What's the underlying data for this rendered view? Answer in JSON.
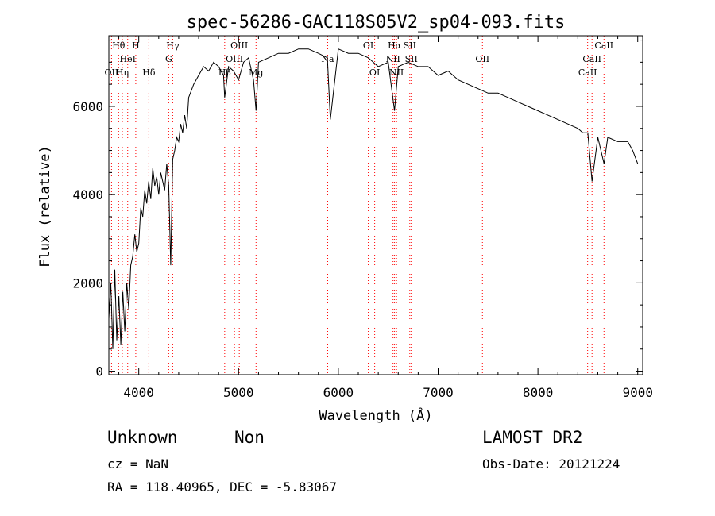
{
  "chart_data": {
    "type": "line",
    "title": "spec-56286-GAC118S05V2_sp04-093.fits",
    "xlabel": "Wavelength (Å)",
    "ylabel": "Flux (relative)",
    "xlim": [
      3700,
      9050
    ],
    "ylim": [
      -80,
      7600
    ],
    "x_ticks": [
      4000,
      5000,
      6000,
      7000,
      8000,
      9000
    ],
    "x_tick_labels": [
      "4000",
      "5000",
      "6000",
      "7000",
      "8000",
      "9000"
    ],
    "y_ticks": [
      0,
      2000,
      4000,
      6000
    ],
    "y_tick_labels": [
      "0",
      "2000",
      "4000",
      "6000"
    ],
    "grid": false,
    "series": [
      {
        "line_color": "#000000",
        "x": [
          3700,
          3720,
          3740,
          3760,
          3780,
          3800,
          3820,
          3840,
          3860,
          3880,
          3900,
          3920,
          3940,
          3960,
          3980,
          4000,
          4020,
          4040,
          4060,
          4080,
          4100,
          4120,
          4140,
          4160,
          4180,
          4200,
          4220,
          4240,
          4260,
          4280,
          4300,
          4320,
          4340,
          4360,
          4380,
          4400,
          4420,
          4440,
          4460,
          4480,
          4500,
          4550,
          4600,
          4650,
          4700,
          4750,
          4800,
          4850,
          4861,
          4900,
          4950,
          5000,
          5050,
          5100,
          5150,
          5175,
          5200,
          5300,
          5400,
          5500,
          5600,
          5700,
          5800,
          5890,
          5920,
          6000,
          6100,
          6200,
          6300,
          6400,
          6500,
          6563,
          6600,
          6700,
          6800,
          6900,
          7000,
          7100,
          7200,
          7300,
          7400,
          7500,
          7600,
          7700,
          7800,
          7900,
          8000,
          8100,
          8200,
          8300,
          8400,
          8450,
          8500,
          8542,
          8600,
          8662,
          8700,
          8800,
          8900,
          8950,
          9000
        ],
        "y": [
          1200,
          2000,
          500,
          2300,
          700,
          1700,
          600,
          1800,
          900,
          2000,
          1400,
          2400,
          2600,
          3100,
          2700,
          2900,
          3700,
          3500,
          4100,
          3800,
          4300,
          3900,
          4600,
          4200,
          4400,
          4000,
          4500,
          4300,
          4100,
          4700,
          4200,
          2400,
          4800,
          5000,
          5300,
          5200,
          5600,
          5400,
          5800,
          5500,
          6200,
          6500,
          6700,
          6900,
          6800,
          7000,
          6900,
          6700,
          6200,
          6900,
          6800,
          6600,
          7000,
          7100,
          6600,
          5900,
          7000,
          7100,
          7200,
          7200,
          7300,
          7300,
          7200,
          7100,
          5700,
          7300,
          7200,
          7200,
          7100,
          6900,
          7000,
          5900,
          6900,
          7000,
          6900,
          6900,
          6700,
          6800,
          6600,
          6500,
          6400,
          6300,
          6300,
          6200,
          6100,
          6000,
          5900,
          5800,
          5700,
          5600,
          5500,
          5400,
          5400,
          4300,
          5300,
          4700,
          5300,
          5200,
          5200,
          5000,
          4700
        ]
      }
    ],
    "line_markers": {
      "color": "#ff0000",
      "wavelengths": [
        3727,
        3798,
        3835,
        3889,
        3970,
        4101,
        4300,
        4340,
        4861,
        4959,
        5007,
        5175,
        5893,
        6300,
        6364,
        6548,
        6563,
        6583,
        6716,
        6731,
        7444,
        8498,
        8542,
        8662
      ],
      "labels": [
        {
          "text": "OII",
          "w": 3727,
          "row": 3
        },
        {
          "text": "Hθ",
          "w": 3798,
          "row": 1
        },
        {
          "text": "Hη",
          "w": 3835,
          "row": 3
        },
        {
          "text": "HeI",
          "w": 3889,
          "row": 2
        },
        {
          "text": "H",
          "w": 3970,
          "row": 1
        },
        {
          "text": "Hδ",
          "w": 4101,
          "row": 3
        },
        {
          "text": "Hγ",
          "w": 4340,
          "row": 1
        },
        {
          "text": "G",
          "w": 4300,
          "row": 2
        },
        {
          "text": "Hβ",
          "w": 4861,
          "row": 3
        },
        {
          "text": "OIII",
          "w": 4959,
          "row": 2
        },
        {
          "text": "OIII",
          "w": 5007,
          "row": 1
        },
        {
          "text": "Mg",
          "w": 5175,
          "row": 3
        },
        {
          "text": "Na",
          "w": 5893,
          "row": 2
        },
        {
          "text": "OI",
          "w": 6300,
          "row": 1
        },
        {
          "text": "OI",
          "w": 6364,
          "row": 3
        },
        {
          "text": "Hα",
          "w": 6563,
          "row": 1
        },
        {
          "text": "NII",
          "w": 6548,
          "row": 2
        },
        {
          "text": "NII",
          "w": 6583,
          "row": 3
        },
        {
          "text": "SII",
          "w": 6716,
          "row": 1
        },
        {
          "text": "SII",
          "w": 6731,
          "row": 2
        },
        {
          "text": "OII",
          "w": 7444,
          "row": 2
        },
        {
          "text": "CaII",
          "w": 8662,
          "row": 1
        },
        {
          "text": "CaII",
          "w": 8542,
          "row": 2
        },
        {
          "text": "CaII",
          "w": 8498,
          "row": 3
        }
      ]
    }
  },
  "info": {
    "class": "Unknown",
    "subclass": "Non",
    "survey": "LAMOST DR2",
    "cz": "cz = NaN",
    "obsdate": "Obs-Date: 20121224",
    "coords": "RA = 118.40965, DEC =  -5.83067"
  }
}
